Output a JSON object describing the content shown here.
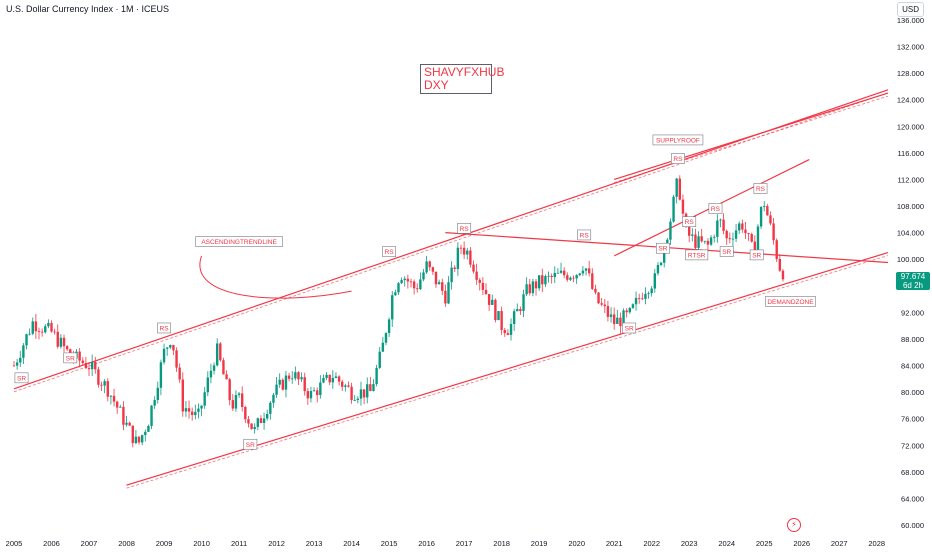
{
  "header": {
    "title": "U.S. Dollar Currency Index · 1M · ICEUS",
    "currency": "USD"
  },
  "watermark": {
    "line1": "SHAVYFXHUB",
    "line2": "DXY"
  },
  "current_price": {
    "value": "97.674",
    "countdown": "6d 2h"
  },
  "colors": {
    "up": "#089981",
    "down": "#f23645",
    "annotation": "#f23645",
    "axis_text": "#131722"
  },
  "icons": [
    "lightning-icon"
  ],
  "chart_data": {
    "type": "candlestick",
    "title": "U.S. Dollar Currency Index · 1M · ICEUS",
    "x_ticks": [
      "2005",
      "2006",
      "2007",
      "2008",
      "2009",
      "2010",
      "2011",
      "2012",
      "2013",
      "2014",
      "2015",
      "2016",
      "2017",
      "2018",
      "2019",
      "2020",
      "2021",
      "2022",
      "2023",
      "2024",
      "2025",
      "2026",
      "2027",
      "2028"
    ],
    "y_ticks": [
      "136.000",
      "132.000",
      "128.000",
      "124.000",
      "120.000",
      "116.000",
      "112.000",
      "108.000",
      "104.000",
      "100.000",
      "96.000",
      "92.000",
      "88.000",
      "84.000",
      "80.000",
      "76.000",
      "72.000",
      "68.000",
      "64.000",
      "60.000"
    ],
    "ylim": [
      60,
      136
    ],
    "xlim": [
      2005,
      2028.3
    ],
    "grid": false,
    "annual_closes": [
      {
        "x": 2005.0,
        "y": 84.0
      },
      {
        "x": 2005.5,
        "y": 90.5
      },
      {
        "x": 2006.0,
        "y": 89.0
      },
      {
        "x": 2006.5,
        "y": 85.5
      },
      {
        "x": 2007.0,
        "y": 84.0
      },
      {
        "x": 2007.5,
        "y": 80.5
      },
      {
        "x": 2008.0,
        "y": 75.0
      },
      {
        "x": 2008.3,
        "y": 72.0
      },
      {
        "x": 2008.6,
        "y": 76.0
      },
      {
        "x": 2009.0,
        "y": 86.0
      },
      {
        "x": 2009.2,
        "y": 88.5
      },
      {
        "x": 2009.5,
        "y": 78.0
      },
      {
        "x": 2009.9,
        "y": 76.0
      },
      {
        "x": 2010.4,
        "y": 86.5
      },
      {
        "x": 2010.8,
        "y": 78.0
      },
      {
        "x": 2011.0,
        "y": 79.0
      },
      {
        "x": 2011.4,
        "y": 74.0
      },
      {
        "x": 2011.9,
        "y": 79.5
      },
      {
        "x": 2012.4,
        "y": 83.0
      },
      {
        "x": 2012.9,
        "y": 79.5
      },
      {
        "x": 2013.5,
        "y": 82.5
      },
      {
        "x": 2014.0,
        "y": 80.0
      },
      {
        "x": 2014.5,
        "y": 80.0
      },
      {
        "x": 2014.8,
        "y": 86.0
      },
      {
        "x": 2015.1,
        "y": 95.0
      },
      {
        "x": 2015.3,
        "y": 98.0
      },
      {
        "x": 2015.7,
        "y": 95.5
      },
      {
        "x": 2016.0,
        "y": 99.0
      },
      {
        "x": 2016.5,
        "y": 94.5
      },
      {
        "x": 2016.9,
        "y": 102.0
      },
      {
        "x": 2017.1,
        "y": 101.0
      },
      {
        "x": 2017.5,
        "y": 96.0
      },
      {
        "x": 2018.0,
        "y": 90.0
      },
      {
        "x": 2018.2,
        "y": 89.5
      },
      {
        "x": 2018.7,
        "y": 95.5
      },
      {
        "x": 2019.0,
        "y": 96.5
      },
      {
        "x": 2019.5,
        "y": 97.5
      },
      {
        "x": 2020.0,
        "y": 98.0
      },
      {
        "x": 2020.2,
        "y": 99.5
      },
      {
        "x": 2020.5,
        "y": 94.0
      },
      {
        "x": 2021.0,
        "y": 90.5
      },
      {
        "x": 2021.4,
        "y": 91.5
      },
      {
        "x": 2021.8,
        "y": 95.5
      },
      {
        "x": 2022.1,
        "y": 97.0
      },
      {
        "x": 2022.5,
        "y": 106.0
      },
      {
        "x": 2022.7,
        "y": 112.0
      },
      {
        "x": 2022.9,
        "y": 104.0
      },
      {
        "x": 2023.2,
        "y": 102.5
      },
      {
        "x": 2023.5,
        "y": 102.0
      },
      {
        "x": 2023.8,
        "y": 106.0
      },
      {
        "x": 2024.0,
        "y": 103.0
      },
      {
        "x": 2024.4,
        "y": 105.5
      },
      {
        "x": 2024.7,
        "y": 101.0
      },
      {
        "x": 2024.9,
        "y": 107.0
      },
      {
        "x": 2025.0,
        "y": 108.5
      },
      {
        "x": 2025.2,
        "y": 104.0
      },
      {
        "x": 2025.4,
        "y": 99.0
      },
      {
        "x": 2025.55,
        "y": 97.674
      }
    ],
    "lines": [
      {
        "name": "upper-channel",
        "x1": 2005.0,
        "y1": 80.5,
        "x2": 2028.3,
        "y2": 125.5
      },
      {
        "name": "lower-channel",
        "x1": 2008.0,
        "y1": 66.0,
        "x2": 2028.3,
        "y2": 101.0
      },
      {
        "name": "top-supply-band",
        "x1": 2021.0,
        "y1": 112.0,
        "x2": 2028.3,
        "y2": 125.0
      },
      {
        "name": "mid-diagonal",
        "x1": 2021.0,
        "y1": 100.5,
        "x2": 2026.2,
        "y2": 115.0
      },
      {
        "name": "horizontal-resistance",
        "x1": 2016.5,
        "y1": 104.0,
        "x2": 2028.3,
        "y2": 99.5
      }
    ],
    "annotations": [
      {
        "text": "SUPPLYROOF",
        "x": 2022.7,
        "y": 117.8
      },
      {
        "text": "RS",
        "x": 2022.7,
        "y": 115.0
      },
      {
        "text": "ASCENDINGTRENDLINE",
        "x": 2011.0,
        "y": 102.5
      },
      {
        "text": "RS",
        "x": 2009.0,
        "y": 89.5
      },
      {
        "text": "SR",
        "x": 2005.2,
        "y": 82.0
      },
      {
        "text": "SR",
        "x": 2006.5,
        "y": 85.0
      },
      {
        "text": "SR",
        "x": 2011.3,
        "y": 72.0
      },
      {
        "text": "RS",
        "x": 2015.0,
        "y": 101.0
      },
      {
        "text": "RS",
        "x": 2017.0,
        "y": 104.5
      },
      {
        "text": "RS",
        "x": 2020.2,
        "y": 103.5
      },
      {
        "text": "SR",
        "x": 2021.4,
        "y": 89.5
      },
      {
        "text": "SR",
        "x": 2022.3,
        "y": 101.5
      },
      {
        "text": "RS",
        "x": 2023.0,
        "y": 105.5
      },
      {
        "text": "RTSR",
        "x": 2023.2,
        "y": 100.5
      },
      {
        "text": "RS",
        "x": 2023.7,
        "y": 107.5
      },
      {
        "text": "SR",
        "x": 2024.0,
        "y": 101.0
      },
      {
        "text": "RS",
        "x": 2024.9,
        "y": 110.5
      },
      {
        "text": "SR",
        "x": 2024.8,
        "y": 100.5
      },
      {
        "text": "DEMANDZONE",
        "x": 2025.7,
        "y": 93.5
      }
    ]
  }
}
